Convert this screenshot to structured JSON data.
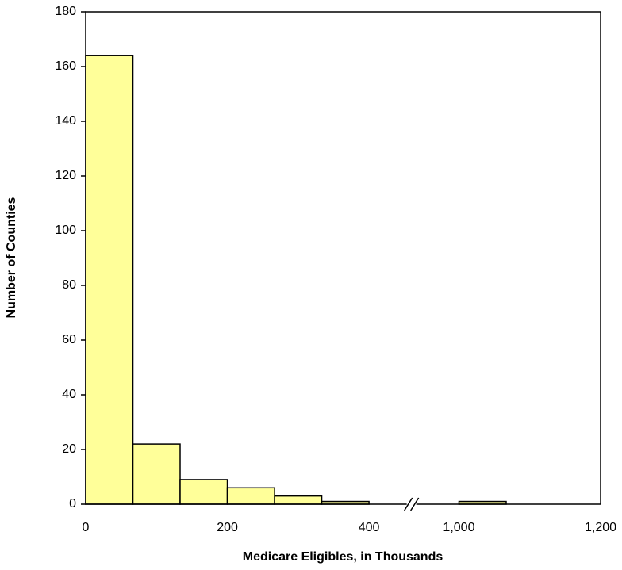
{
  "chart_data": {
    "type": "histogram",
    "x_label": "Medicare Eligibles, in Thousands",
    "y_label": "Number of Counties",
    "bins": [
      0,
      66.7,
      133.3,
      200,
      266.7,
      333.3,
      400,
      1000,
      1066.7
    ],
    "values": [
      164,
      22,
      9,
      6,
      3,
      1,
      0,
      1
    ],
    "color": "#ffff99",
    "xlim": [
      0,
      1200
    ],
    "x_break": [
      460,
      933
    ],
    "xticks": [
      0,
      200,
      400,
      {
        "value": 1000,
        "label": "1,000"
      },
      {
        "value": 1200,
        "label": "1,200"
      }
    ],
    "ylim": [
      0,
      180
    ],
    "yticks": [
      0,
      20,
      40,
      60,
      80,
      100,
      120,
      140,
      160,
      180
    ],
    "grid": false
  }
}
